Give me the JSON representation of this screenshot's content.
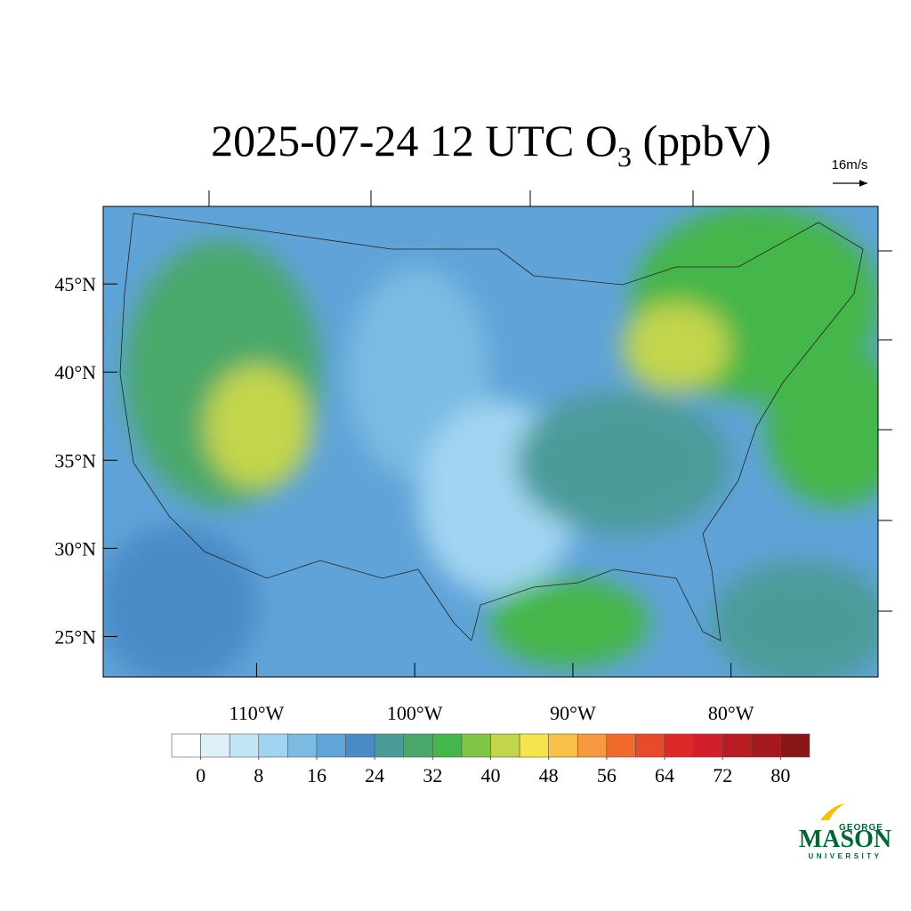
{
  "title": {
    "main": "2025-07-24 12 UTC O",
    "subscript": "3",
    "tail": " (ppbV)"
  },
  "vector_legend": "16m/s",
  "map": {
    "lat_lim": [
      22.7,
      49.4
    ],
    "lon_lim": [
      -119.7,
      -70.7
    ],
    "lat_ticks": [
      {
        "value": 45,
        "label": "45°N"
      },
      {
        "value": 40,
        "label": "40°N"
      },
      {
        "value": 35,
        "label": "35°N"
      },
      {
        "value": 30,
        "label": "30°N"
      },
      {
        "value": 25,
        "label": "25°N"
      }
    ],
    "lon_ticks": [
      {
        "value": -110,
        "label": "110°W"
      },
      {
        "value": -100,
        "label": "100°W"
      },
      {
        "value": -90,
        "label": "90°W"
      },
      {
        "value": -80,
        "label": "80°W"
      }
    ]
  },
  "colorbar": {
    "lim": [
      -4,
      84
    ],
    "colors": [
      "#ffffff",
      "#def0f9",
      "#c3e5f6",
      "#a0d4f1",
      "#7bbbe2",
      "#60a4d9",
      "#4a8bc7",
      "#4b9b9a",
      "#4aa86b",
      "#44b64a",
      "#82c443",
      "#c3d54b",
      "#f7e44c",
      "#f9c04a",
      "#f79a3f",
      "#f26b2d",
      "#e84b2b",
      "#dd2a28",
      "#d21f2b",
      "#b91c22",
      "#a5181c",
      "#8a1518"
    ],
    "ticks": [
      0,
      8,
      16,
      24,
      32,
      40,
      48,
      56,
      64,
      72,
      80
    ]
  },
  "logo": {
    "top": "GEORGE",
    "name": "MASON",
    "bottom": "UNIVERSITY"
  }
}
